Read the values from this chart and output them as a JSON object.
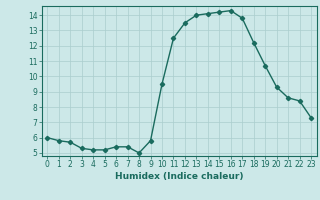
{
  "x": [
    0,
    1,
    2,
    3,
    4,
    5,
    6,
    7,
    8,
    9,
    10,
    11,
    12,
    13,
    14,
    15,
    16,
    17,
    18,
    19,
    20,
    21,
    22,
    23
  ],
  "y": [
    6.0,
    5.8,
    5.7,
    5.3,
    5.2,
    5.2,
    5.4,
    5.4,
    5.0,
    5.8,
    9.5,
    12.5,
    13.5,
    14.0,
    14.1,
    14.2,
    14.3,
    13.8,
    12.2,
    10.7,
    9.3,
    8.6,
    8.4,
    7.3
  ],
  "line_color": "#1a6b5e",
  "marker": "D",
  "marker_size": 2.2,
  "bg_color": "#cce8e8",
  "grid_color": "#aacece",
  "xlabel": "Humidex (Indice chaleur)",
  "ylim": [
    4.8,
    14.6
  ],
  "xlim": [
    -0.5,
    23.5
  ],
  "yticks": [
    5,
    6,
    7,
    8,
    9,
    10,
    11,
    12,
    13,
    14
  ],
  "xticks": [
    0,
    1,
    2,
    3,
    4,
    5,
    6,
    7,
    8,
    9,
    10,
    11,
    12,
    13,
    14,
    15,
    16,
    17,
    18,
    19,
    20,
    21,
    22,
    23
  ],
  "tick_color": "#1a6b5e",
  "label_fontsize": 6.5,
  "tick_fontsize": 5.5,
  "linewidth": 1.0
}
